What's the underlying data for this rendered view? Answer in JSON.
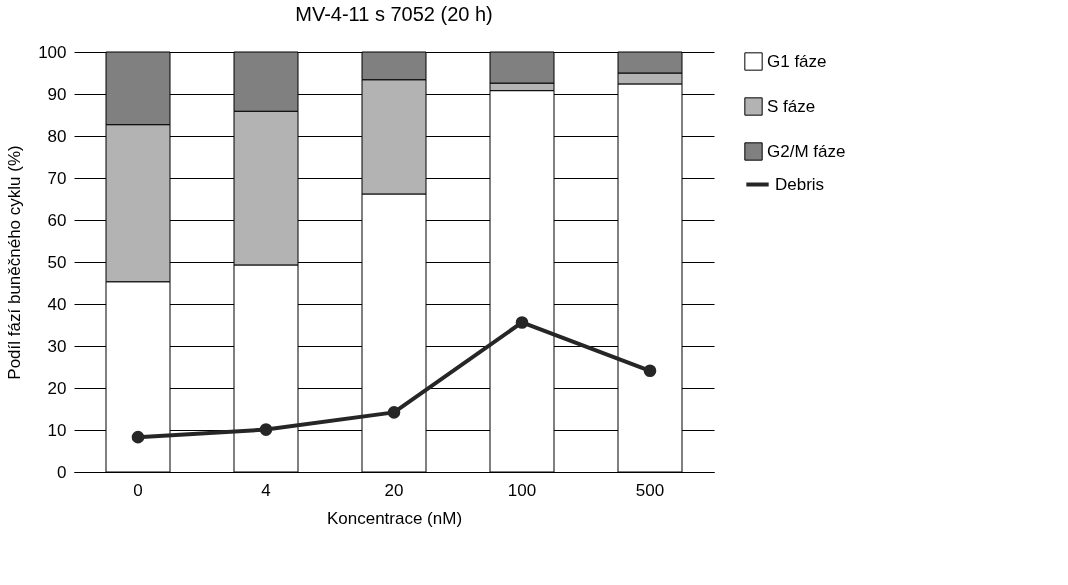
{
  "chart_data": {
    "type": "bar",
    "title": "MV-4-11 s 7052 (20 h)",
    "xlabel": "Koncentrace (nM)",
    "ylabel": "Podíl fází buněčného cyklu (%)",
    "categories": [
      "0",
      "4",
      "20",
      "100",
      "500"
    ],
    "stacked": true,
    "series": [
      {
        "name": "G1 fáze",
        "color": "#ffffff",
        "values": [
          45.3,
          49.3,
          66.2,
          90.8,
          92.4
        ]
      },
      {
        "name": "S fáze",
        "color": "#b3b3b3",
        "values": [
          37.4,
          36.6,
          27.2,
          1.8,
          2.6
        ]
      },
      {
        "name": "G2/M fáze",
        "color": "#808080",
        "values": [
          17.3,
          14.1,
          6.6,
          7.4,
          5.0
        ]
      },
      {
        "name": "Debris",
        "type": "line",
        "color": "#262626",
        "marker": "circle",
        "values": [
          8.3,
          10.1,
          14.2,
          35.6,
          24.1
        ]
      }
    ],
    "ylim": [
      0,
      100
    ],
    "yticks": [
      0,
      10,
      20,
      30,
      40,
      50,
      60,
      70,
      80,
      90,
      100
    ],
    "grid": "y",
    "legend": "right"
  }
}
